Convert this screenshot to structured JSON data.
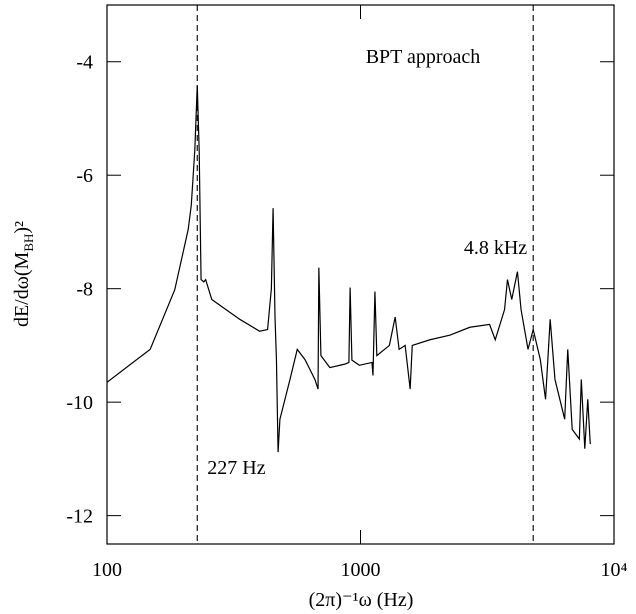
{
  "chart_data": {
    "type": "line",
    "ylabel": {
      "main": "dE/dω(M",
      "sub": "BH",
      "tail": ")²"
    },
    "xlabel": "(2π)⁻¹ω (Hz)",
    "annotations": [
      {
        "text": "BPT approach"
      },
      {
        "text": "227 Hz",
        "x": 227
      },
      {
        "text": "4.8 kHz",
        "x": 4800
      }
    ],
    "xscale": "log",
    "xlim": [
      100,
      10000
    ],
    "ylim": [
      -12.5,
      -3
    ],
    "xticks": [
      100,
      1000,
      {
        "value": 10000,
        "label": "10⁴"
      }
    ],
    "yticks": [
      -12,
      -10,
      -8,
      -6,
      -4
    ],
    "series": [
      {
        "color": "#000000",
        "x": [
          100,
          148,
          185,
          209,
          215,
          222,
          227,
          231,
          235,
          241,
          245,
          259,
          334,
          400,
          430,
          445,
          452,
          460,
          466,
          473,
          481,
          527,
          563,
          604,
          661,
          680,
          685,
          698,
          757,
          867,
          900,
          910,
          925,
          990,
          1110,
          1120,
          1140,
          1160,
          1300,
          1370,
          1420,
          1500,
          1570,
          1600,
          1880,
          2250,
          2700,
          3230,
          3400,
          3700,
          3800,
          3950,
          4160,
          4300,
          4580,
          4800,
          5120,
          5370,
          5600,
          5850,
          6390,
          6570,
          6840,
          7300,
          7430,
          7670,
          7880,
          8060
        ],
        "values": [
          -9.65,
          -9.07,
          -8.02,
          -6.96,
          -6.53,
          -5.56,
          -4.42,
          -5.56,
          -7.84,
          -7.88,
          -7.84,
          -8.19,
          -8.54,
          -8.75,
          -8.72,
          -8.0,
          -6.58,
          -8.5,
          -9.25,
          -10.88,
          -10.3,
          -9.6,
          -9.07,
          -9.25,
          -9.6,
          -9.77,
          -7.63,
          -9.18,
          -9.39,
          -9.33,
          -9.3,
          -7.98,
          -9.26,
          -9.35,
          -9.3,
          -9.53,
          -8.05,
          -9.18,
          -9.0,
          -8.5,
          -9.07,
          -9.0,
          -9.77,
          -9.0,
          -8.9,
          -8.82,
          -8.68,
          -8.63,
          -8.9,
          -8.37,
          -7.84,
          -8.19,
          -7.7,
          -8.37,
          -9.07,
          -8.72,
          -9.25,
          -9.95,
          -8.54,
          -9.6,
          -10.3,
          -9.07,
          -10.48,
          -10.65,
          -9.6,
          -10.82,
          -9.95,
          -10.74
        ]
      }
    ]
  }
}
